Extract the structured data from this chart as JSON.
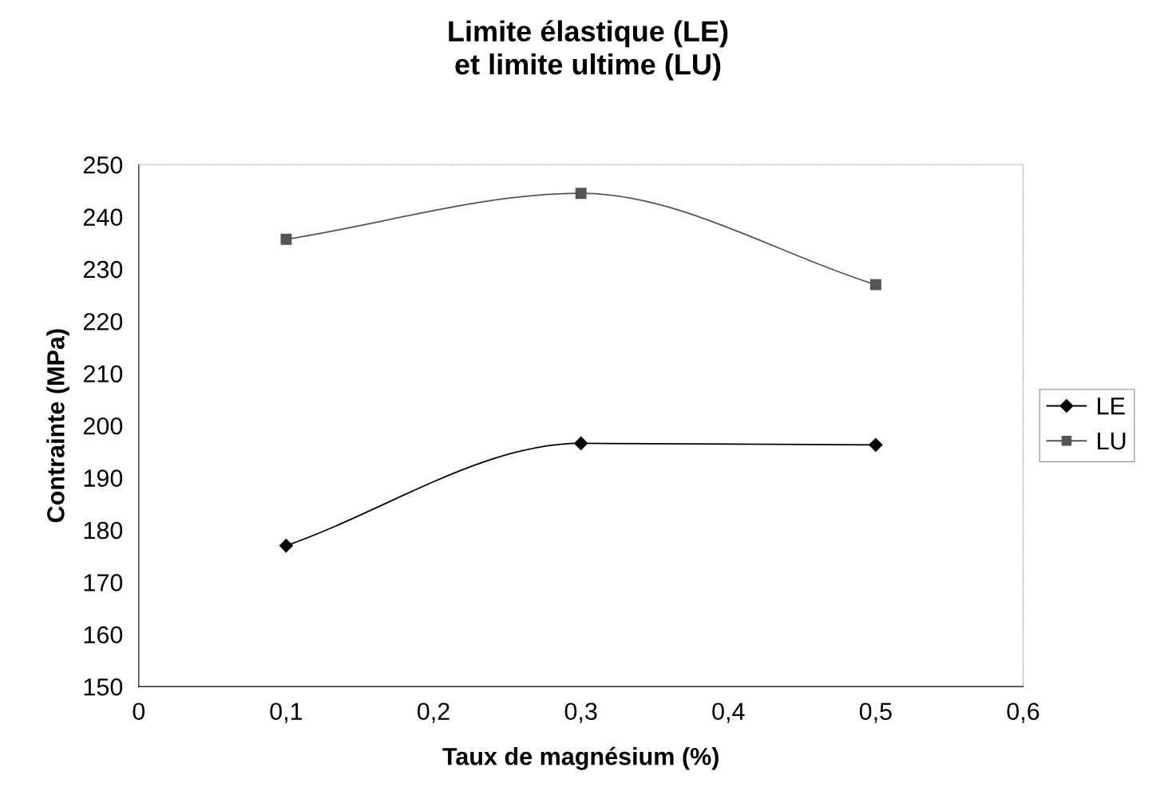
{
  "chart_data": {
    "type": "line",
    "title": "Limite élastique (LE)\net limite ultime (LU)",
    "xlabel": "Taux de magnésium (%)",
    "ylabel": "Contrainte (MPa)",
    "x": [
      0.1,
      0.3,
      0.5
    ],
    "series": [
      {
        "name": "LE",
        "color": "#000000",
        "marker": "diamond",
        "values": [
          177,
          196.6,
          196.3
        ]
      },
      {
        "name": "LU",
        "color": "#555555",
        "marker": "square",
        "values": [
          235.7,
          244.5,
          227
        ]
      }
    ],
    "xlim": [
      0,
      0.6
    ],
    "xticks": [
      0,
      {
        "value": 0.1,
        "label": "0,1"
      },
      {
        "value": 0.2,
        "label": "0,2"
      },
      {
        "value": 0.3,
        "label": "0,3"
      },
      {
        "value": 0.4,
        "label": "0,4"
      },
      {
        "value": 0.5,
        "label": "0,5"
      },
      {
        "value": 0.6,
        "label": "0,6"
      }
    ],
    "ylim": [
      150,
      250
    ],
    "yticks": [
      150,
      160,
      170,
      180,
      190,
      200,
      210,
      220,
      230,
      240,
      250
    ],
    "grid": false,
    "legend": "right",
    "line_style": "solid"
  }
}
